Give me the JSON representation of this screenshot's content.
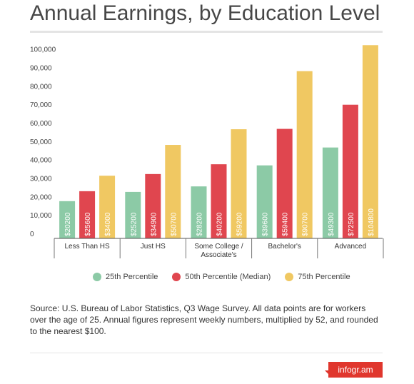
{
  "title": "Annual Earnings, by Education Level",
  "chart_data": {
    "type": "bar",
    "title": "Annual Earnings, by Education Level",
    "categories": [
      "Less Than HS",
      "Just HS",
      "Some College /\nAssociate's",
      "Bachelor's",
      "Advanced"
    ],
    "series": [
      {
        "name": "25th Percentile",
        "color": "#8ccaa6",
        "values": [
          20200,
          25200,
          28200,
          39600,
          49300
        ],
        "labels": [
          "$20200",
          "$25200",
          "$28200",
          "$39600",
          "$49300"
        ]
      },
      {
        "name": "50th Percentile (Median)",
        "color": "#e0464f",
        "values": [
          25600,
          34900,
          40200,
          59400,
          72500
        ],
        "labels": [
          "$25600",
          "$34900",
          "$40200",
          "$59400",
          "$72500"
        ]
      },
      {
        "name": "75th Percentile",
        "color": "#f0c862",
        "values": [
          34000,
          50700,
          59200,
          90700,
          104800
        ],
        "labels": [
          "$34000",
          "$50700",
          "$59200",
          "$90700",
          "$104800"
        ]
      }
    ],
    "yticks": [
      0,
      10000,
      20000,
      30000,
      40000,
      50000,
      60000,
      70000,
      80000,
      90000,
      100000
    ],
    "ytick_labels": [
      "0",
      "10,000",
      "20,000",
      "30,000",
      "40,000",
      "50,000",
      "60,000",
      "70,000",
      "80,000",
      "90,000",
      "100,000"
    ],
    "ylim": [
      0,
      108000
    ],
    "legend": "bottom",
    "grid": false
  },
  "legend": [
    {
      "label": "25th Percentile",
      "color": "#8ccaa6"
    },
    {
      "label": "50th Percentile (Median)",
      "color": "#e0464f"
    },
    {
      "label": "75th Percentile",
      "color": "#f0c862"
    }
  ],
  "source": "Source: U.S. Bureau of Labor Statistics, Q3 Wage Survey. All data points are for workers over the age of 25. Annual figures represent weekly numbers, multiplied by 52, and rounded to the nearest $100.",
  "brand": "infogr.am"
}
